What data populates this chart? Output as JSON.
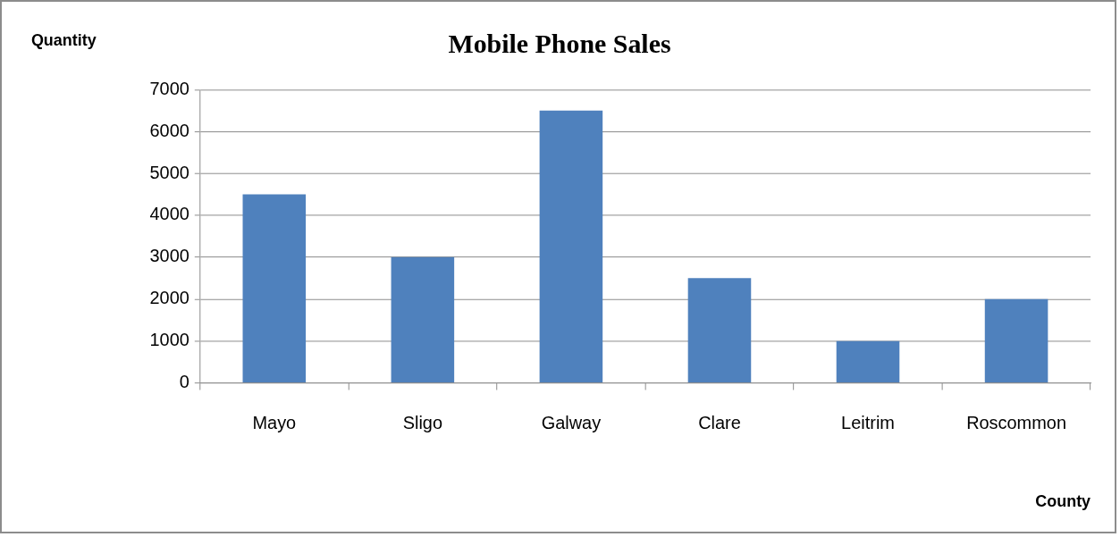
{
  "chart_data": {
    "type": "bar",
    "title": "Mobile Phone Sales",
    "xlabel": "County",
    "ylabel": "Quantity",
    "categories": [
      "Mayo",
      "Sligo",
      "Galway",
      "Clare",
      "Leitrim",
      "Roscommon"
    ],
    "values": [
      4500,
      3000,
      6500,
      2500,
      1000,
      2000
    ],
    "color": "#4f81bd",
    "ylim": [
      0,
      7000
    ],
    "yticks": [
      0,
      1000,
      2000,
      3000,
      4000,
      5000,
      6000,
      7000
    ],
    "grid": "y",
    "legend": false
  }
}
